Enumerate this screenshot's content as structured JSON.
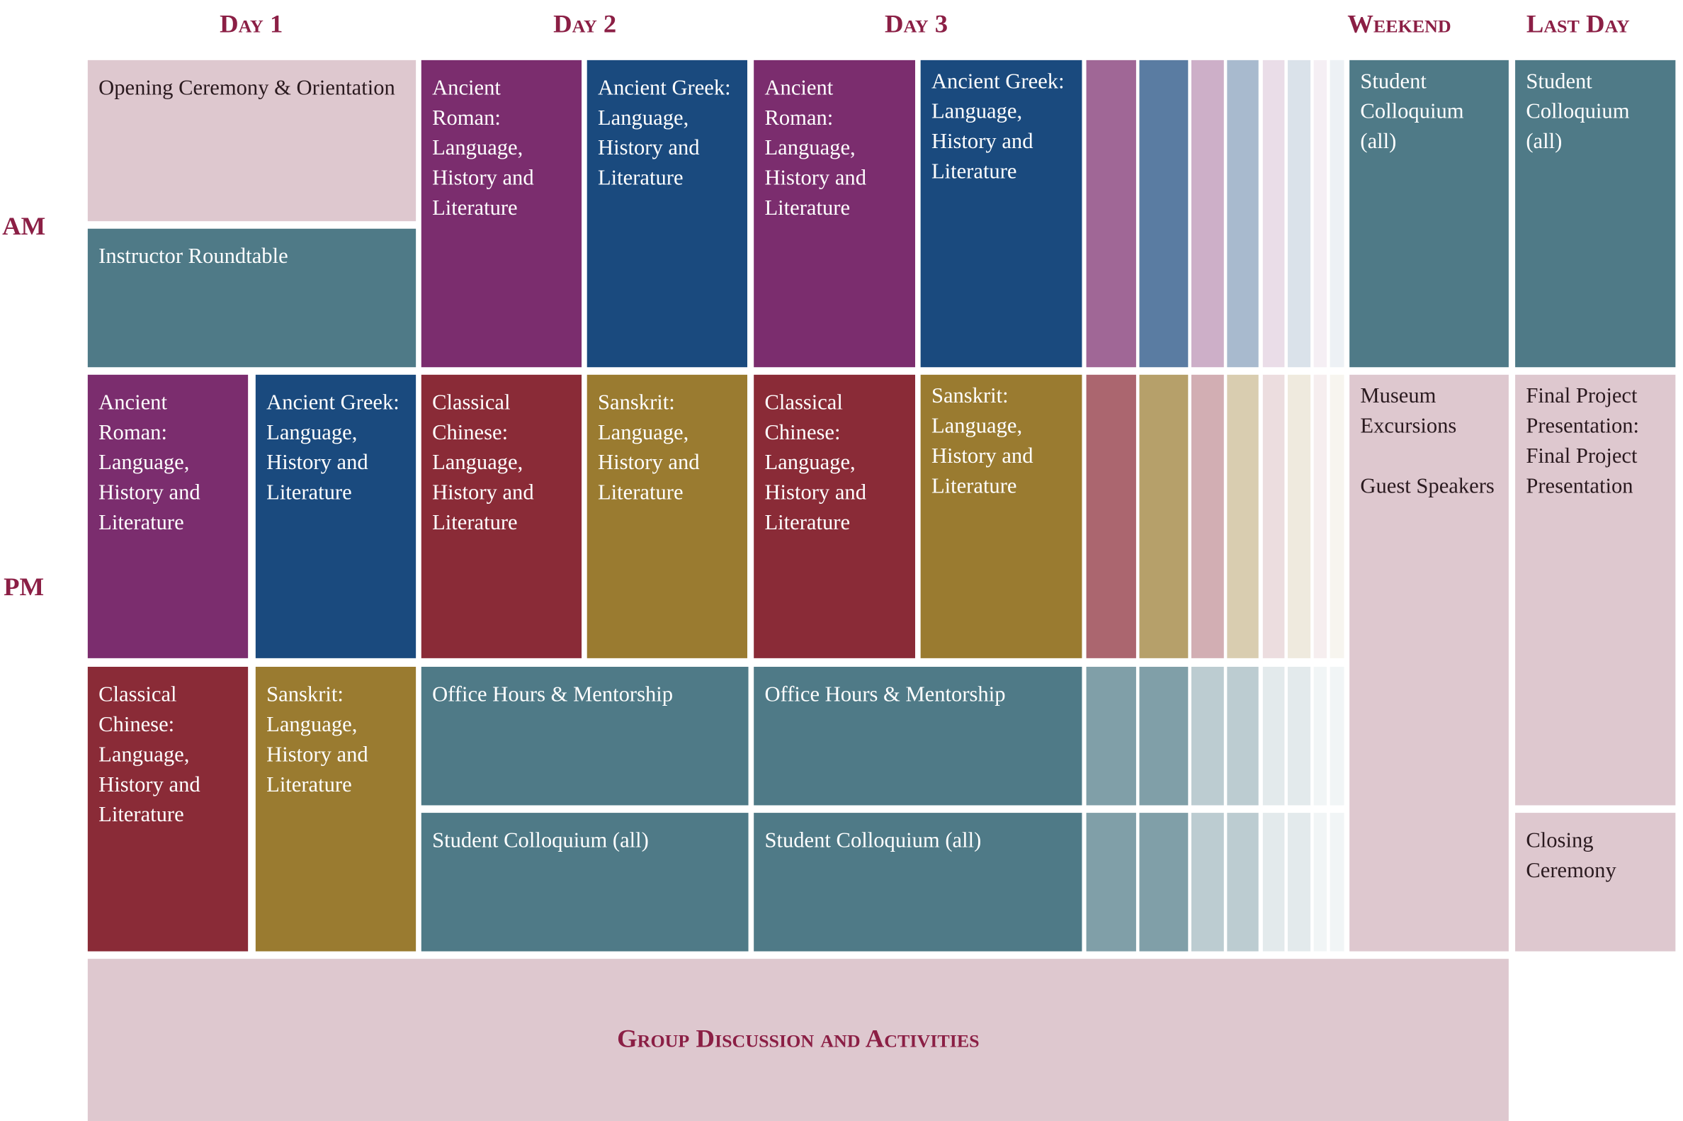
{
  "headers": [
    "Day 1",
    "Day 2",
    "Day 3",
    "Weekend",
    "Last Day"
  ],
  "periods": [
    "AM",
    "PM"
  ],
  "blocks": [
    {
      "texts": [
        "Opening Ceremony & Orientation"
      ]
    },
    {
      "texts": [
        "Instructor Roundtable"
      ]
    },
    {
      "texts": [
        "Ancient Roman: Language, History and Literature"
      ]
    },
    {
      "texts": [
        "Ancient Greek: Language, History and Literature"
      ]
    },
    {
      "texts": [
        "Classical Chinese: Language, History and Literature"
      ]
    },
    {
      "texts": [
        "Sanskrit: Language, History and Literature"
      ]
    },
    {
      "texts": [
        "Ancient Roman: Language, History and Literature"
      ]
    },
    {
      "texts": [
        "Ancient Greek: Language, History and Literature"
      ]
    },
    {
      "texts": [
        "Classical Chinese: Language, History and Literature"
      ]
    },
    {
      "texts": [
        "Sanskrit: Language, History and Literature"
      ]
    },
    {
      "texts": [
        "Office Hours & Mentorship"
      ]
    },
    {
      "texts": [
        "Student Colloquium (all)"
      ]
    },
    {
      "texts": [
        "Ancient Roman: Language, History and Literature"
      ]
    },
    {
      "texts": [
        "Ancient Greek: Language, History and Literature"
      ]
    },
    {
      "texts": [
        "Classical Chinese: Language, History and Literature"
      ]
    },
    {
      "texts": [
        "Sanskrit: Language, History and Literature"
      ]
    },
    {
      "texts": [
        "Office Hours & Mentorship"
      ]
    },
    {
      "texts": [
        "Student Colloquium (all)"
      ]
    },
    {
      "texts": [
        "Student Colloquium (all)"
      ]
    },
    {
      "texts": [
        "Museum Excursions",
        "Guest Speakers"
      ]
    },
    {
      "texts": [
        "Student Colloquium (all)"
      ]
    },
    {
      "texts": [
        "Final Project Presentation: Final Project Presentation"
      ]
    },
    {
      "texts": [
        "Closing Ceremony"
      ]
    }
  ],
  "footer": "Group Discussion and Activities"
}
